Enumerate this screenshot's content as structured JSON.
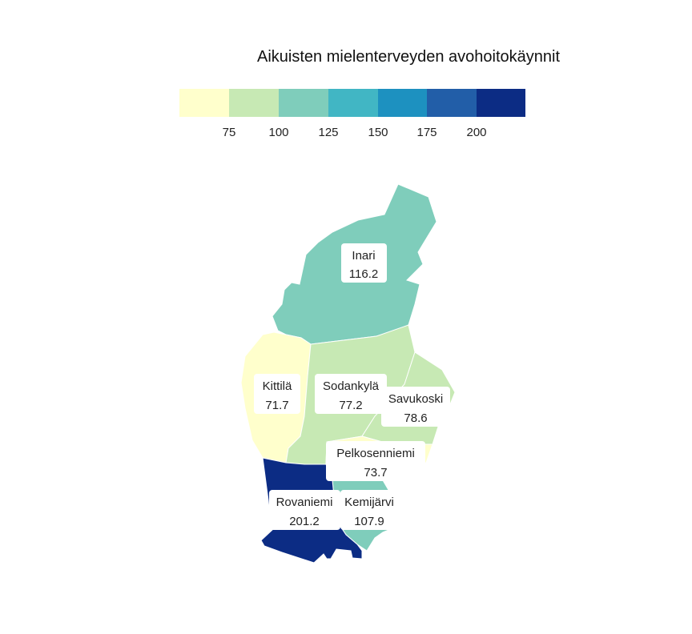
{
  "title": "Aikuisten mielenterveyden avohoitokäynnit",
  "legend": {
    "colors": [
      "#ffffcc",
      "#c7e9b4",
      "#7fcdbb",
      "#41b6c4",
      "#1d91c0",
      "#225ea8",
      "#0c2c84"
    ],
    "breaks": [
      "75",
      "100",
      "125",
      "150",
      "175",
      "200"
    ]
  },
  "regions": [
    {
      "id": "inari",
      "name": "Inari",
      "value": "116.2",
      "color": "#7fcdbb"
    },
    {
      "id": "kittila",
      "name": "Kittilä",
      "value": "71.7",
      "color": "#ffffcc"
    },
    {
      "id": "sodankyla",
      "name": "Sodankylä",
      "value": "77.2",
      "color": "#c7e9b4"
    },
    {
      "id": "savukoski",
      "name": "Savukoski",
      "value": "78.6",
      "color": "#c7e9b4"
    },
    {
      "id": "pelkosenniemi",
      "name": "Pelkosenniemi",
      "value": "73.7",
      "color": "#ffffcc"
    },
    {
      "id": "rovaniemi",
      "name": "Rovaniemi",
      "value": "201.2",
      "color": "#0c2c84"
    },
    {
      "id": "kemijarvi",
      "name": "Kemijärvi",
      "value": "107.9",
      "color": "#7fcdbb"
    }
  ]
}
